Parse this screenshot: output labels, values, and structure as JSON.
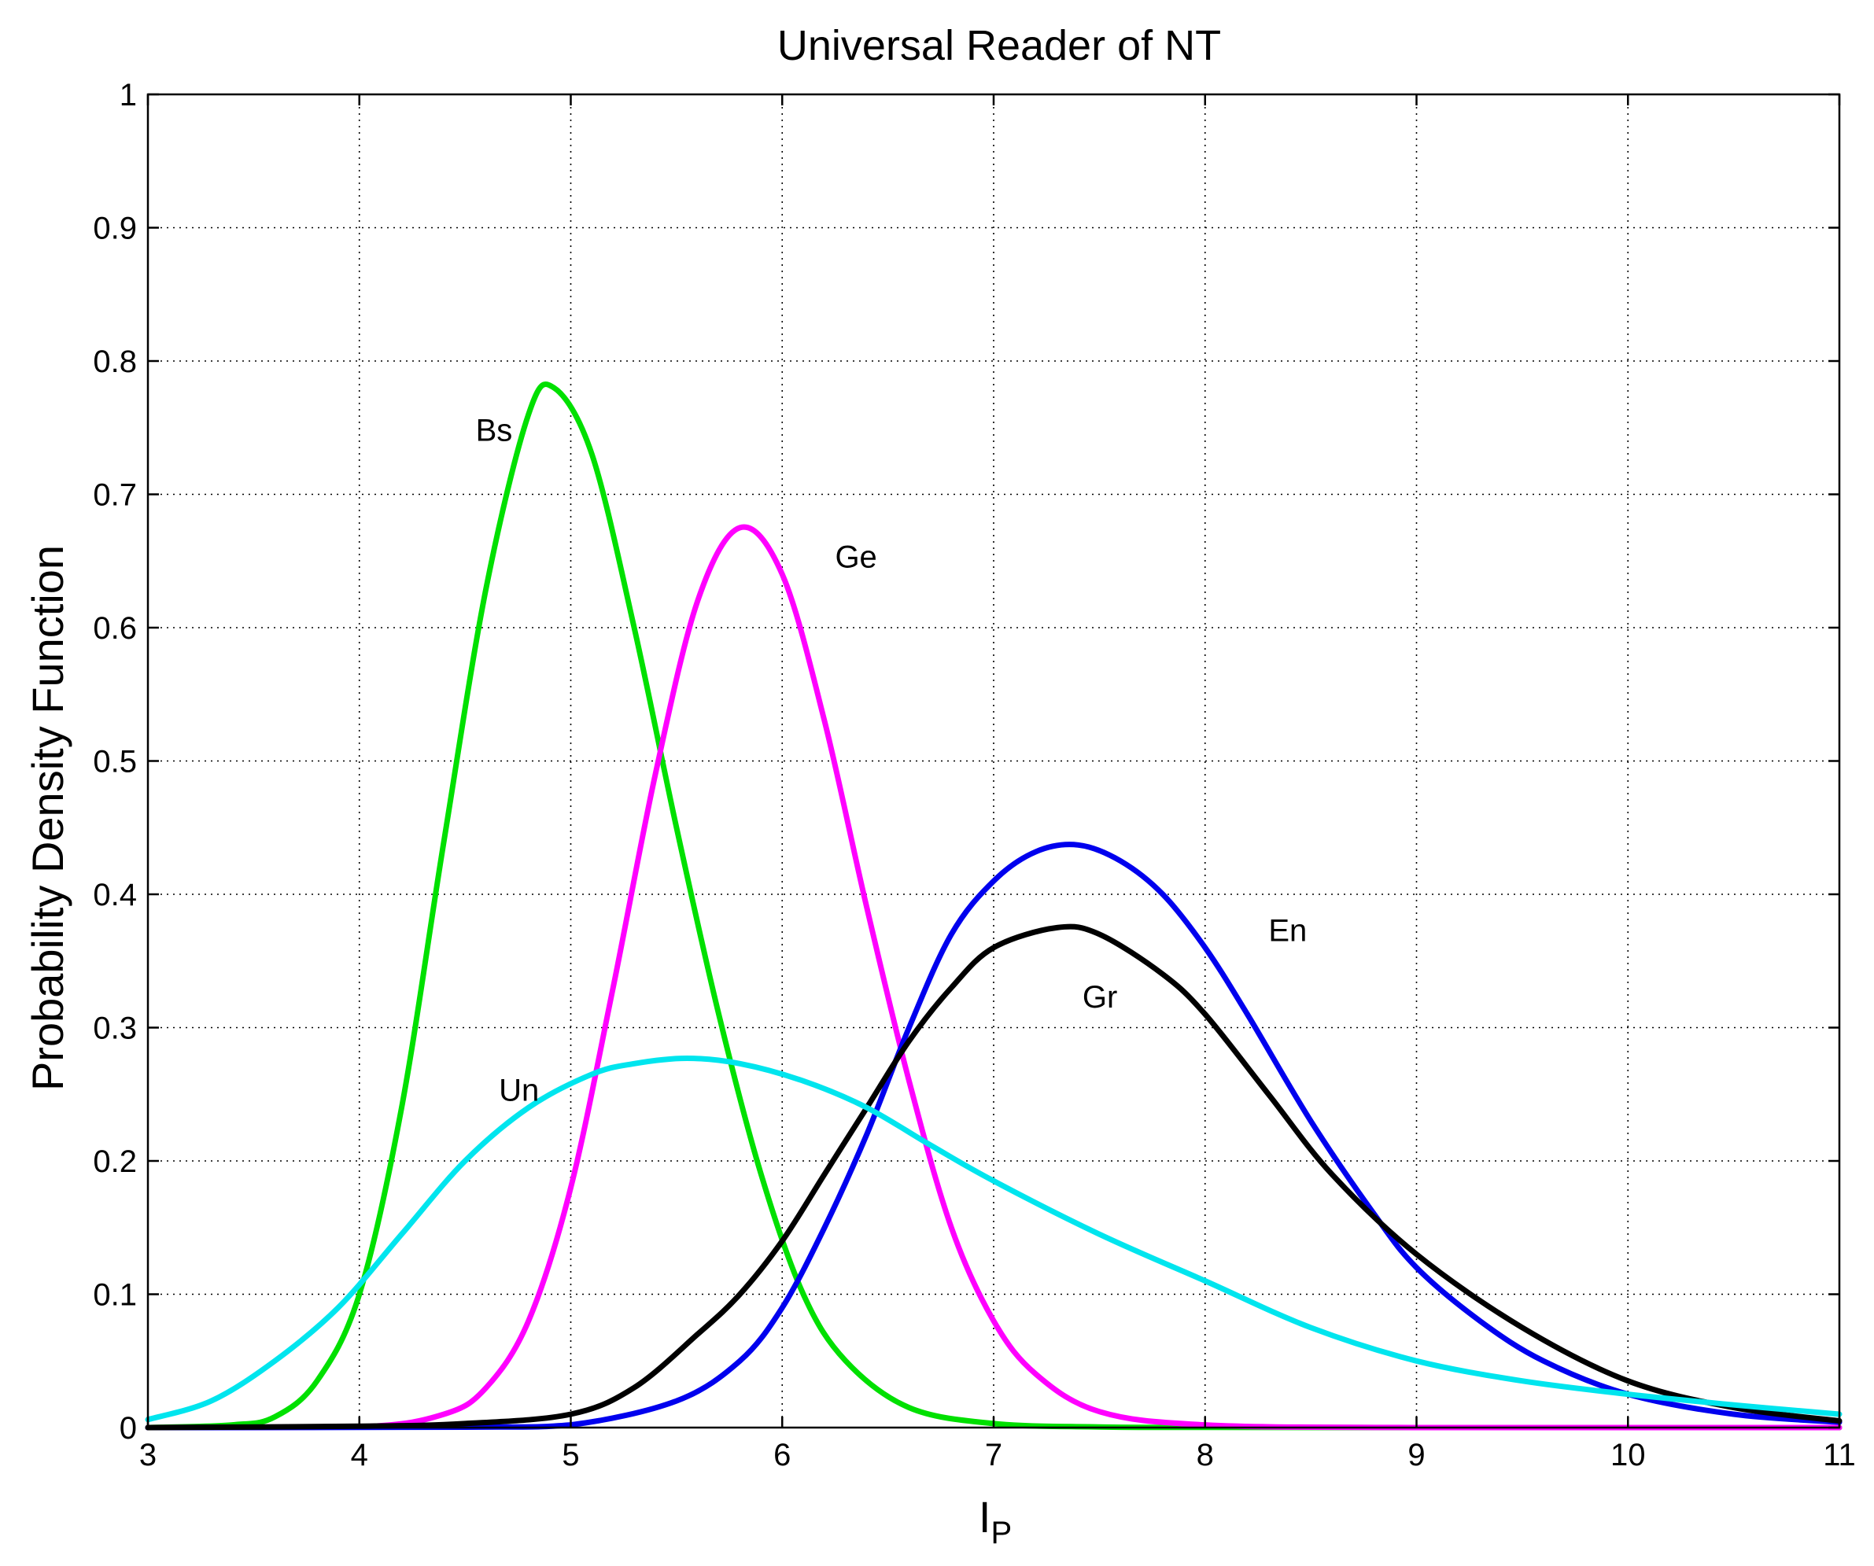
{
  "chart_data": {
    "type": "line",
    "title": "Universal Reader of NT",
    "xlabel": "I",
    "xlabel_sub": "P",
    "ylabel": "Probability Density Function",
    "xlim": [
      3,
      11
    ],
    "ylim": [
      0,
      1
    ],
    "xticks": [
      "3",
      "4",
      "5",
      "6",
      "7",
      "8",
      "9",
      "10",
      "11"
    ],
    "yticks": [
      "0",
      "0.1",
      "0.2",
      "0.3",
      "0.4",
      "0.5",
      "0.6",
      "0.7",
      "0.8",
      "0.9",
      "1"
    ],
    "grid": true,
    "legend": "none",
    "series": [
      {
        "name": "Bs",
        "color": "#00e000",
        "x": [
          3.0,
          3.4,
          3.6,
          3.8,
          4.0,
          4.2,
          4.4,
          4.6,
          4.8,
          4.92,
          5.1,
          5.3,
          5.5,
          5.7,
          5.9,
          6.1,
          6.3,
          6.6,
          7.0,
          7.5,
          8.0,
          9.0,
          11.0
        ],
        "y": [
          0.0,
          0.002,
          0.008,
          0.035,
          0.1,
          0.24,
          0.44,
          0.63,
          0.76,
          0.78,
          0.73,
          0.6,
          0.45,
          0.31,
          0.19,
          0.1,
          0.05,
          0.015,
          0.003,
          0.0005,
          0.0001,
          0.0,
          0.0
        ]
      },
      {
        "name": "Ge",
        "color": "#ff00ff",
        "x": [
          3.0,
          4.0,
          4.4,
          4.6,
          4.8,
          5.0,
          5.2,
          5.4,
          5.6,
          5.8,
          6.0,
          6.2,
          6.4,
          6.6,
          6.8,
          7.0,
          7.2,
          7.5,
          8.0,
          9.0,
          11.0
        ],
        "y": [
          0.0,
          0.0005,
          0.01,
          0.03,
          0.08,
          0.18,
          0.33,
          0.49,
          0.62,
          0.675,
          0.64,
          0.53,
          0.39,
          0.26,
          0.15,
          0.08,
          0.04,
          0.012,
          0.002,
          0.0,
          0.0
        ]
      },
      {
        "name": "En",
        "color": "#0000ee",
        "x": [
          3.0,
          4.5,
          5.0,
          5.5,
          5.8,
          6.0,
          6.2,
          6.4,
          6.6,
          6.8,
          7.0,
          7.2,
          7.4,
          7.6,
          7.8,
          8.0,
          8.2,
          8.5,
          8.8,
          9.0,
          9.3,
          9.6,
          10.0,
          10.5,
          11.0
        ],
        "y": [
          0.0,
          0.0003,
          0.002,
          0.02,
          0.05,
          0.09,
          0.15,
          0.22,
          0.3,
          0.37,
          0.41,
          0.432,
          0.437,
          0.425,
          0.4,
          0.36,
          0.31,
          0.23,
          0.16,
          0.12,
          0.08,
          0.05,
          0.025,
          0.01,
          0.004
        ]
      },
      {
        "name": "Gr",
        "color": "#000000",
        "x": [
          3.0,
          4.0,
          4.5,
          5.0,
          5.3,
          5.6,
          5.8,
          6.0,
          6.2,
          6.4,
          6.6,
          6.8,
          7.0,
          7.3,
          7.5,
          7.8,
          8.0,
          8.3,
          8.6,
          9.0,
          9.5,
          10.0,
          10.5,
          11.0
        ],
        "y": [
          0.0,
          0.001,
          0.003,
          0.01,
          0.03,
          0.07,
          0.1,
          0.14,
          0.19,
          0.24,
          0.29,
          0.33,
          0.36,
          0.375,
          0.37,
          0.34,
          0.31,
          0.25,
          0.19,
          0.13,
          0.075,
          0.035,
          0.015,
          0.005
        ]
      },
      {
        "name": "Un",
        "color": "#00e5ee",
        "x": [
          3.0,
          3.3,
          3.6,
          3.9,
          4.2,
          4.5,
          4.8,
          5.1,
          5.3,
          5.55,
          5.8,
          6.1,
          6.4,
          6.7,
          7.0,
          7.5,
          8.0,
          8.5,
          9.0,
          9.5,
          10.0,
          10.5,
          11.0
        ],
        "y": [
          0.006,
          0.02,
          0.05,
          0.09,
          0.145,
          0.2,
          0.24,
          0.265,
          0.273,
          0.277,
          0.273,
          0.26,
          0.24,
          0.212,
          0.185,
          0.145,
          0.11,
          0.075,
          0.05,
          0.035,
          0.025,
          0.017,
          0.01
        ]
      }
    ],
    "annotations": [
      {
        "text": "Bs",
        "x": 4.55,
        "y": 0.74
      },
      {
        "text": "Ge",
        "x": 6.25,
        "y": 0.645
      },
      {
        "text": "En",
        "x": 8.3,
        "y": 0.365
      },
      {
        "text": "Gr",
        "x": 7.42,
        "y": 0.315
      },
      {
        "text": "Un",
        "x": 4.66,
        "y": 0.245
      }
    ]
  }
}
